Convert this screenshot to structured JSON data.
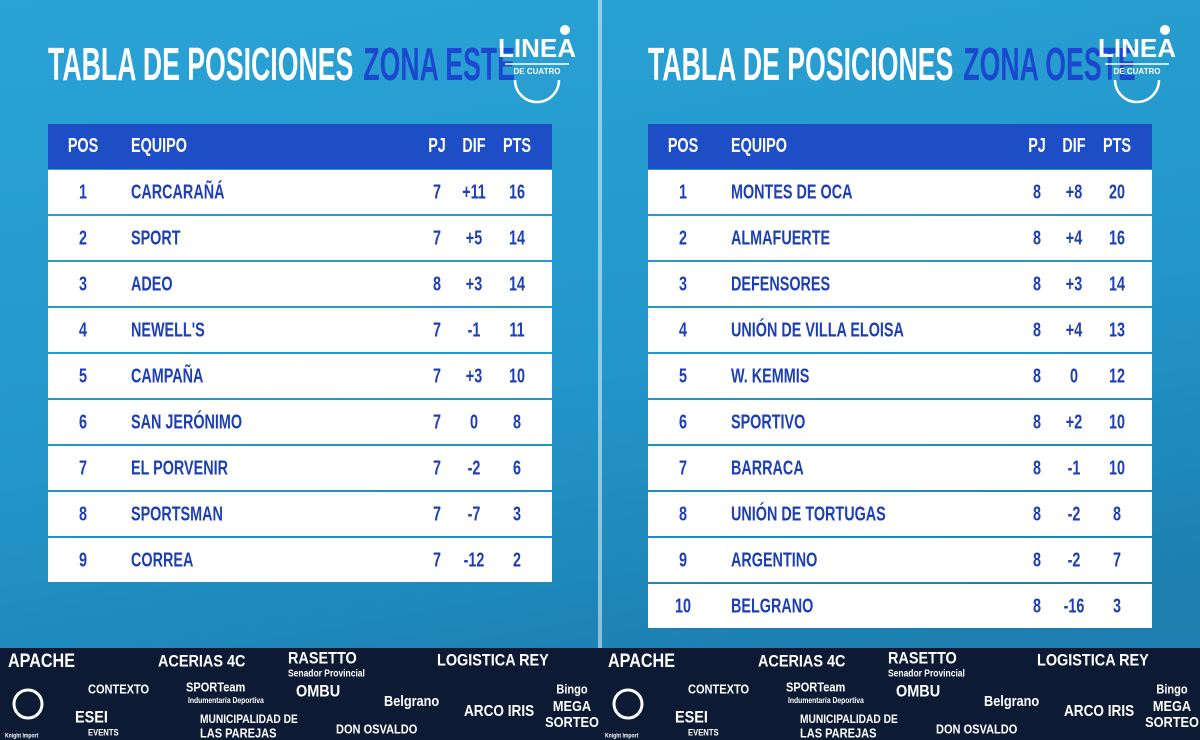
{
  "panels": [
    {
      "title": "TABLA DE POSICIONES",
      "zone": "ZONA ESTE",
      "logo": {
        "name": "LINEA",
        "sub": "DE CUATRO"
      },
      "table": {
        "header": [
          "POS",
          "EQUIPO",
          "PJ",
          "DIF",
          "PTS"
        ],
        "rows": [
          [
            "1",
            "CARCARAÑÁ",
            "7",
            "+11",
            "16"
          ],
          [
            "2",
            "SPORT",
            "7",
            "+5",
            "14"
          ],
          [
            "3",
            "ADEO",
            "8",
            "+3",
            "14"
          ],
          [
            "4",
            "NEWELL'S",
            "7",
            "-1",
            "11"
          ],
          [
            "5",
            "CAMPAÑA",
            "7",
            "+3",
            "10"
          ],
          [
            "6",
            "SAN JERÓNIMO",
            "7",
            "0",
            "8"
          ],
          [
            "7",
            "EL PORVENIR",
            "7",
            "-2",
            "6"
          ],
          [
            "8",
            "SPORTSMAN",
            "7",
            "-7",
            "3"
          ],
          [
            "9",
            "CORREA",
            "7",
            "-12",
            "2"
          ]
        ]
      }
    },
    {
      "title": "TABLA DE POSICIONES",
      "zone": "ZONA OESTE",
      "logo": {
        "name": "LINEA",
        "sub": "DE CUATRO"
      },
      "table": {
        "header": [
          "POS",
          "EQUIPO",
          "PJ",
          "DIF",
          "PTS"
        ],
        "rows": [
          [
            "1",
            "MONTES DE OCA",
            "8",
            "+8",
            "20"
          ],
          [
            "2",
            "ALMAFUERTE",
            "8",
            "+4",
            "16"
          ],
          [
            "3",
            "DEFENSORES",
            "8",
            "+3",
            "14"
          ],
          [
            "4",
            "UNIÓN DE VILLA ELOISA",
            "8",
            "+4",
            "13"
          ],
          [
            "5",
            "W. KEMMIS",
            "8",
            "0",
            "12"
          ],
          [
            "6",
            "SPORTIVO",
            "8",
            "+2",
            "10"
          ],
          [
            "7",
            "BARRACA",
            "8",
            "-1",
            "10"
          ],
          [
            "8",
            "UNIÓN DE TORTUGAS",
            "8",
            "-2",
            "8"
          ],
          [
            "9",
            "ARGENTINO",
            "8",
            "-2",
            "7"
          ],
          [
            "10",
            "BELGRANO",
            "8",
            "-16",
            "3"
          ]
        ]
      }
    }
  ],
  "sponsors": [
    "APACHE",
    "ACERIAS 4C",
    "RASETTO",
    "Senador Provincial",
    "LOGISTICA REY",
    "CONTEXTO",
    "SPORTeam",
    "Indumentaria Deportiva",
    "OMBU",
    "Belgrano",
    "ARCO IRIS",
    "Bingo",
    "MEGA",
    "SORTEO",
    "ESEI",
    "EVENTS",
    "MUNICIPALIDAD DE",
    "LAS PAREJAS",
    "DON OSVALDO",
    "Knight Import"
  ]
}
